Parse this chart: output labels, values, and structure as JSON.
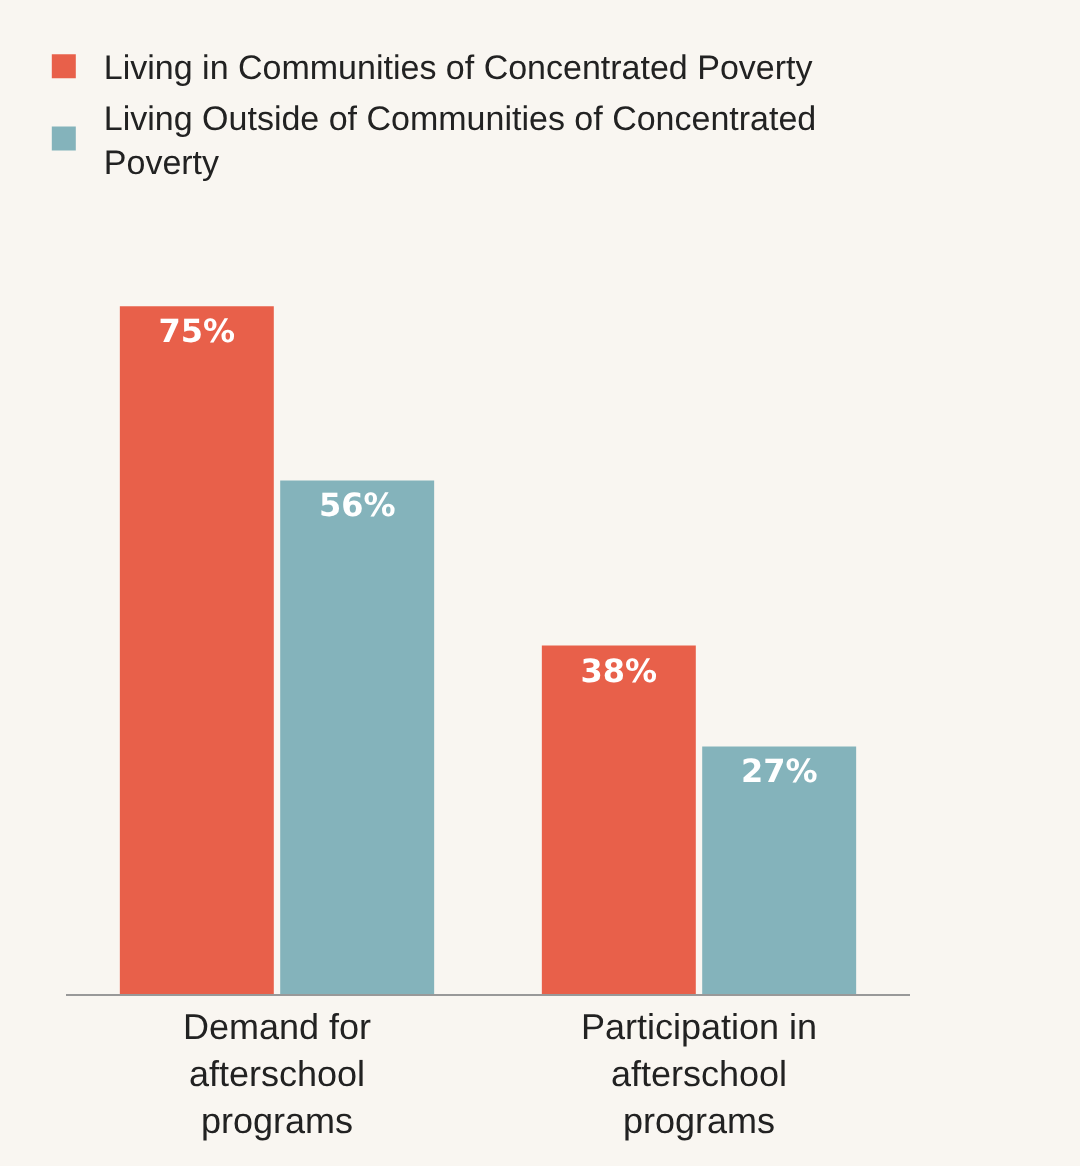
{
  "chart_data": {
    "type": "bar",
    "categories": [
      "Demand for afterschool programs",
      "Participation in afterschool programs"
    ],
    "series": [
      {
        "name": "Living in Communities of Concentrated Poverty",
        "color": "#e8604a",
        "values": [
          75,
          38
        ],
        "value_labels": [
          "75%",
          "38%"
        ]
      },
      {
        "name": "Living Outside of Communities of Concentrated Poverty",
        "color": "#84b3bb",
        "values": [
          56,
          27
        ],
        "value_labels": [
          "56%",
          "27%"
        ]
      }
    ],
    "legend": "top left",
    "grid": false
  }
}
